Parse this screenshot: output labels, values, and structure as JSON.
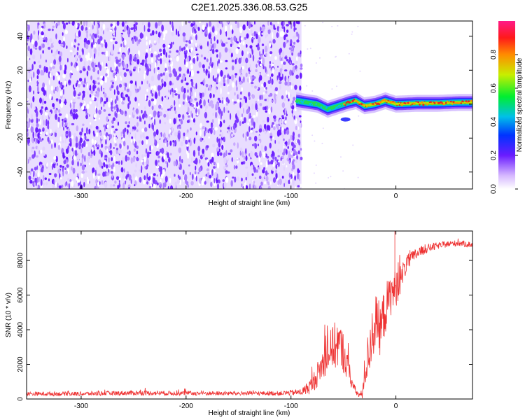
{
  "title": "C2E1.2025.336.08.53.G25",
  "chart_data": [
    {
      "type": "heatmap",
      "name": "spectrogram",
      "xlabel": "Height of straight line (km)",
      "ylabel": "Frequency (Hz)",
      "xlim": [
        -352,
        73
      ],
      "ylim": [
        -50,
        49
      ],
      "xticks": [
        -300,
        -200,
        -100,
        0
      ],
      "xtick_labels": [
        "-300",
        "-200",
        "-100",
        "0"
      ],
      "yticks": [
        -40,
        -20,
        0,
        20,
        40
      ],
      "ytick_labels": [
        "-40",
        "-20",
        "0",
        "20",
        "40"
      ],
      "noise_region_km": [
        -352,
        -90
      ],
      "signal_track": [
        {
          "x": -95,
          "f": 2
        },
        {
          "x": -85,
          "f": 1
        },
        {
          "x": -75,
          "f": 0
        },
        {
          "x": -65,
          "f": -3
        },
        {
          "x": -55,
          "f": -1
        },
        {
          "x": -45,
          "f": 1
        },
        {
          "x": -38,
          "f": 2
        },
        {
          "x": -30,
          "f": -1
        },
        {
          "x": -20,
          "f": 0
        },
        {
          "x": -10,
          "f": 2
        },
        {
          "x": 0,
          "f": 0
        },
        {
          "x": 20,
          "f": 0.5
        },
        {
          "x": 40,
          "f": 0.5
        },
        {
          "x": 60,
          "f": 1
        },
        {
          "x": 73,
          "f": 1
        }
      ],
      "side_blob": {
        "x_range": [
          -52,
          -44
        ],
        "f": -9
      }
    },
    {
      "type": "colorbar",
      "label": "Normalized spectral amplitude",
      "range": [
        0.0,
        1.0
      ],
      "ticks": [
        0.0,
        0.2,
        0.4,
        0.6,
        0.8
      ],
      "tick_labels": [
        "0.0",
        "0.2",
        "0.4",
        "0.6",
        "0.8"
      ]
    },
    {
      "type": "line",
      "name": "snr",
      "color": "#ee3333",
      "xlabel": "Height of straight line (km)",
      "ylabel": "SNR (10 * v/v)",
      "xlim": [
        -352,
        73
      ],
      "ylim": [
        0,
        9700
      ],
      "xticks": [
        -300,
        -200,
        -100,
        0
      ],
      "xtick_labels": [
        "-300",
        "-200",
        "-100",
        "0"
      ],
      "yticks": [
        0,
        2000,
        4000,
        6000,
        8000
      ],
      "ytick_labels": [
        "0",
        "2000",
        "4000",
        "6000",
        "8000"
      ],
      "series": [
        {
          "name": "SNR",
          "x": [
            -352,
            -300,
            -250,
            -200,
            -150,
            -110,
            -90,
            -80,
            -75,
            -70,
            -65,
            -60,
            -55,
            -50,
            -45,
            -40,
            -35,
            -32,
            -30,
            -25,
            -20,
            -15,
            -10,
            -5,
            0,
            5,
            10,
            20,
            30,
            40,
            50,
            60,
            73
          ],
          "y": [
            300,
            300,
            350,
            330,
            320,
            330,
            400,
            800,
            1400,
            2000,
            2600,
            3000,
            3200,
            2700,
            1600,
            600,
            200,
            300,
            1400,
            3000,
            4500,
            4000,
            5200,
            6000,
            6400,
            7000,
            7800,
            8400,
            8700,
            8850,
            8950,
            9000,
            8900
          ],
          "noise": [
            120,
            120,
            140,
            130,
            120,
            130,
            200,
            500,
            700,
            900,
            1100,
            1300,
            1500,
            1200,
            700,
            300,
            150,
            300,
            900,
            1500,
            1700,
            1500,
            1500,
            1200,
            1100,
            800,
            500,
            350,
            250,
            200,
            180,
            180,
            180
          ]
        }
      ]
    }
  ]
}
